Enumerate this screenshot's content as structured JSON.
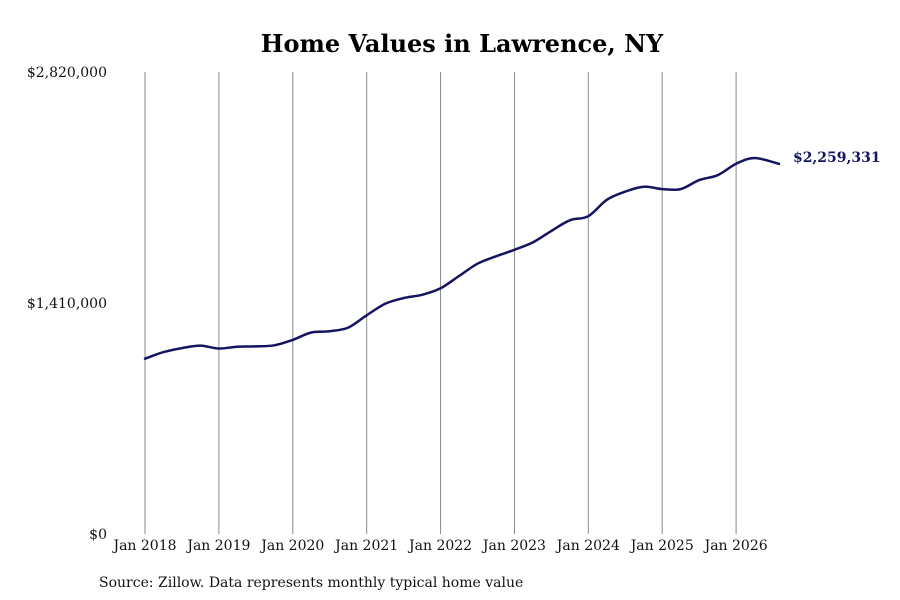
{
  "chart_data": {
    "type": "line",
    "title": "Home Values in Lawrence, NY",
    "source": "Source: Zillow. Data represents monthly typical home value",
    "xlabel": "",
    "ylabel": "",
    "ylim": [
      0,
      2820000
    ],
    "y_ticks": [
      {
        "value": 0,
        "label": "$0"
      },
      {
        "value": 1410000,
        "label": "$1,410,000"
      },
      {
        "value": 2820000,
        "label": "$2,820,000"
      }
    ],
    "x_ticks": [
      {
        "value": 2018,
        "label": "Jan 2018"
      },
      {
        "value": 2019,
        "label": "Jan 2019"
      },
      {
        "value": 2020,
        "label": "Jan 2020"
      },
      {
        "value": 2021,
        "label": "Jan 2021"
      },
      {
        "value": 2022,
        "label": "Jan 2022"
      },
      {
        "value": 2023,
        "label": "Jan 2023"
      },
      {
        "value": 2024,
        "label": "Jan 2024"
      },
      {
        "value": 2025,
        "label": "Jan 2025"
      },
      {
        "value": 2026,
        "label": "Jan 2026"
      }
    ],
    "xlim": [
      2018,
      2027
    ],
    "grid": "vertical",
    "line_color": "#14145f",
    "end_label": "$2,259,331",
    "series": [
      {
        "name": "",
        "x": [
          2018.0,
          2018.25,
          2018.5,
          2018.75,
          2019.0,
          2019.25,
          2019.5,
          2019.75,
          2020.0,
          2020.25,
          2020.5,
          2020.75,
          2021.0,
          2021.25,
          2021.5,
          2021.75,
          2022.0,
          2022.25,
          2022.5,
          2022.75,
          2023.0,
          2023.25,
          2023.5,
          2023.75,
          2024.0,
          2024.25,
          2024.5,
          2024.75,
          2025.0,
          2025.25,
          2025.5,
          2025.75,
          2026.0,
          2026.25,
          2026.58
        ],
        "values": [
          1070000,
          1110000,
          1135000,
          1150000,
          1132000,
          1143000,
          1145000,
          1152000,
          1185000,
          1230000,
          1238000,
          1260000,
          1335000,
          1405000,
          1440000,
          1460000,
          1500000,
          1575000,
          1650000,
          1695000,
          1735000,
          1780000,
          1850000,
          1915000,
          1940000,
          2040000,
          2090000,
          2120000,
          2105000,
          2105000,
          2160000,
          2190000,
          2260000,
          2295000,
          2259331
        ]
      }
    ]
  }
}
